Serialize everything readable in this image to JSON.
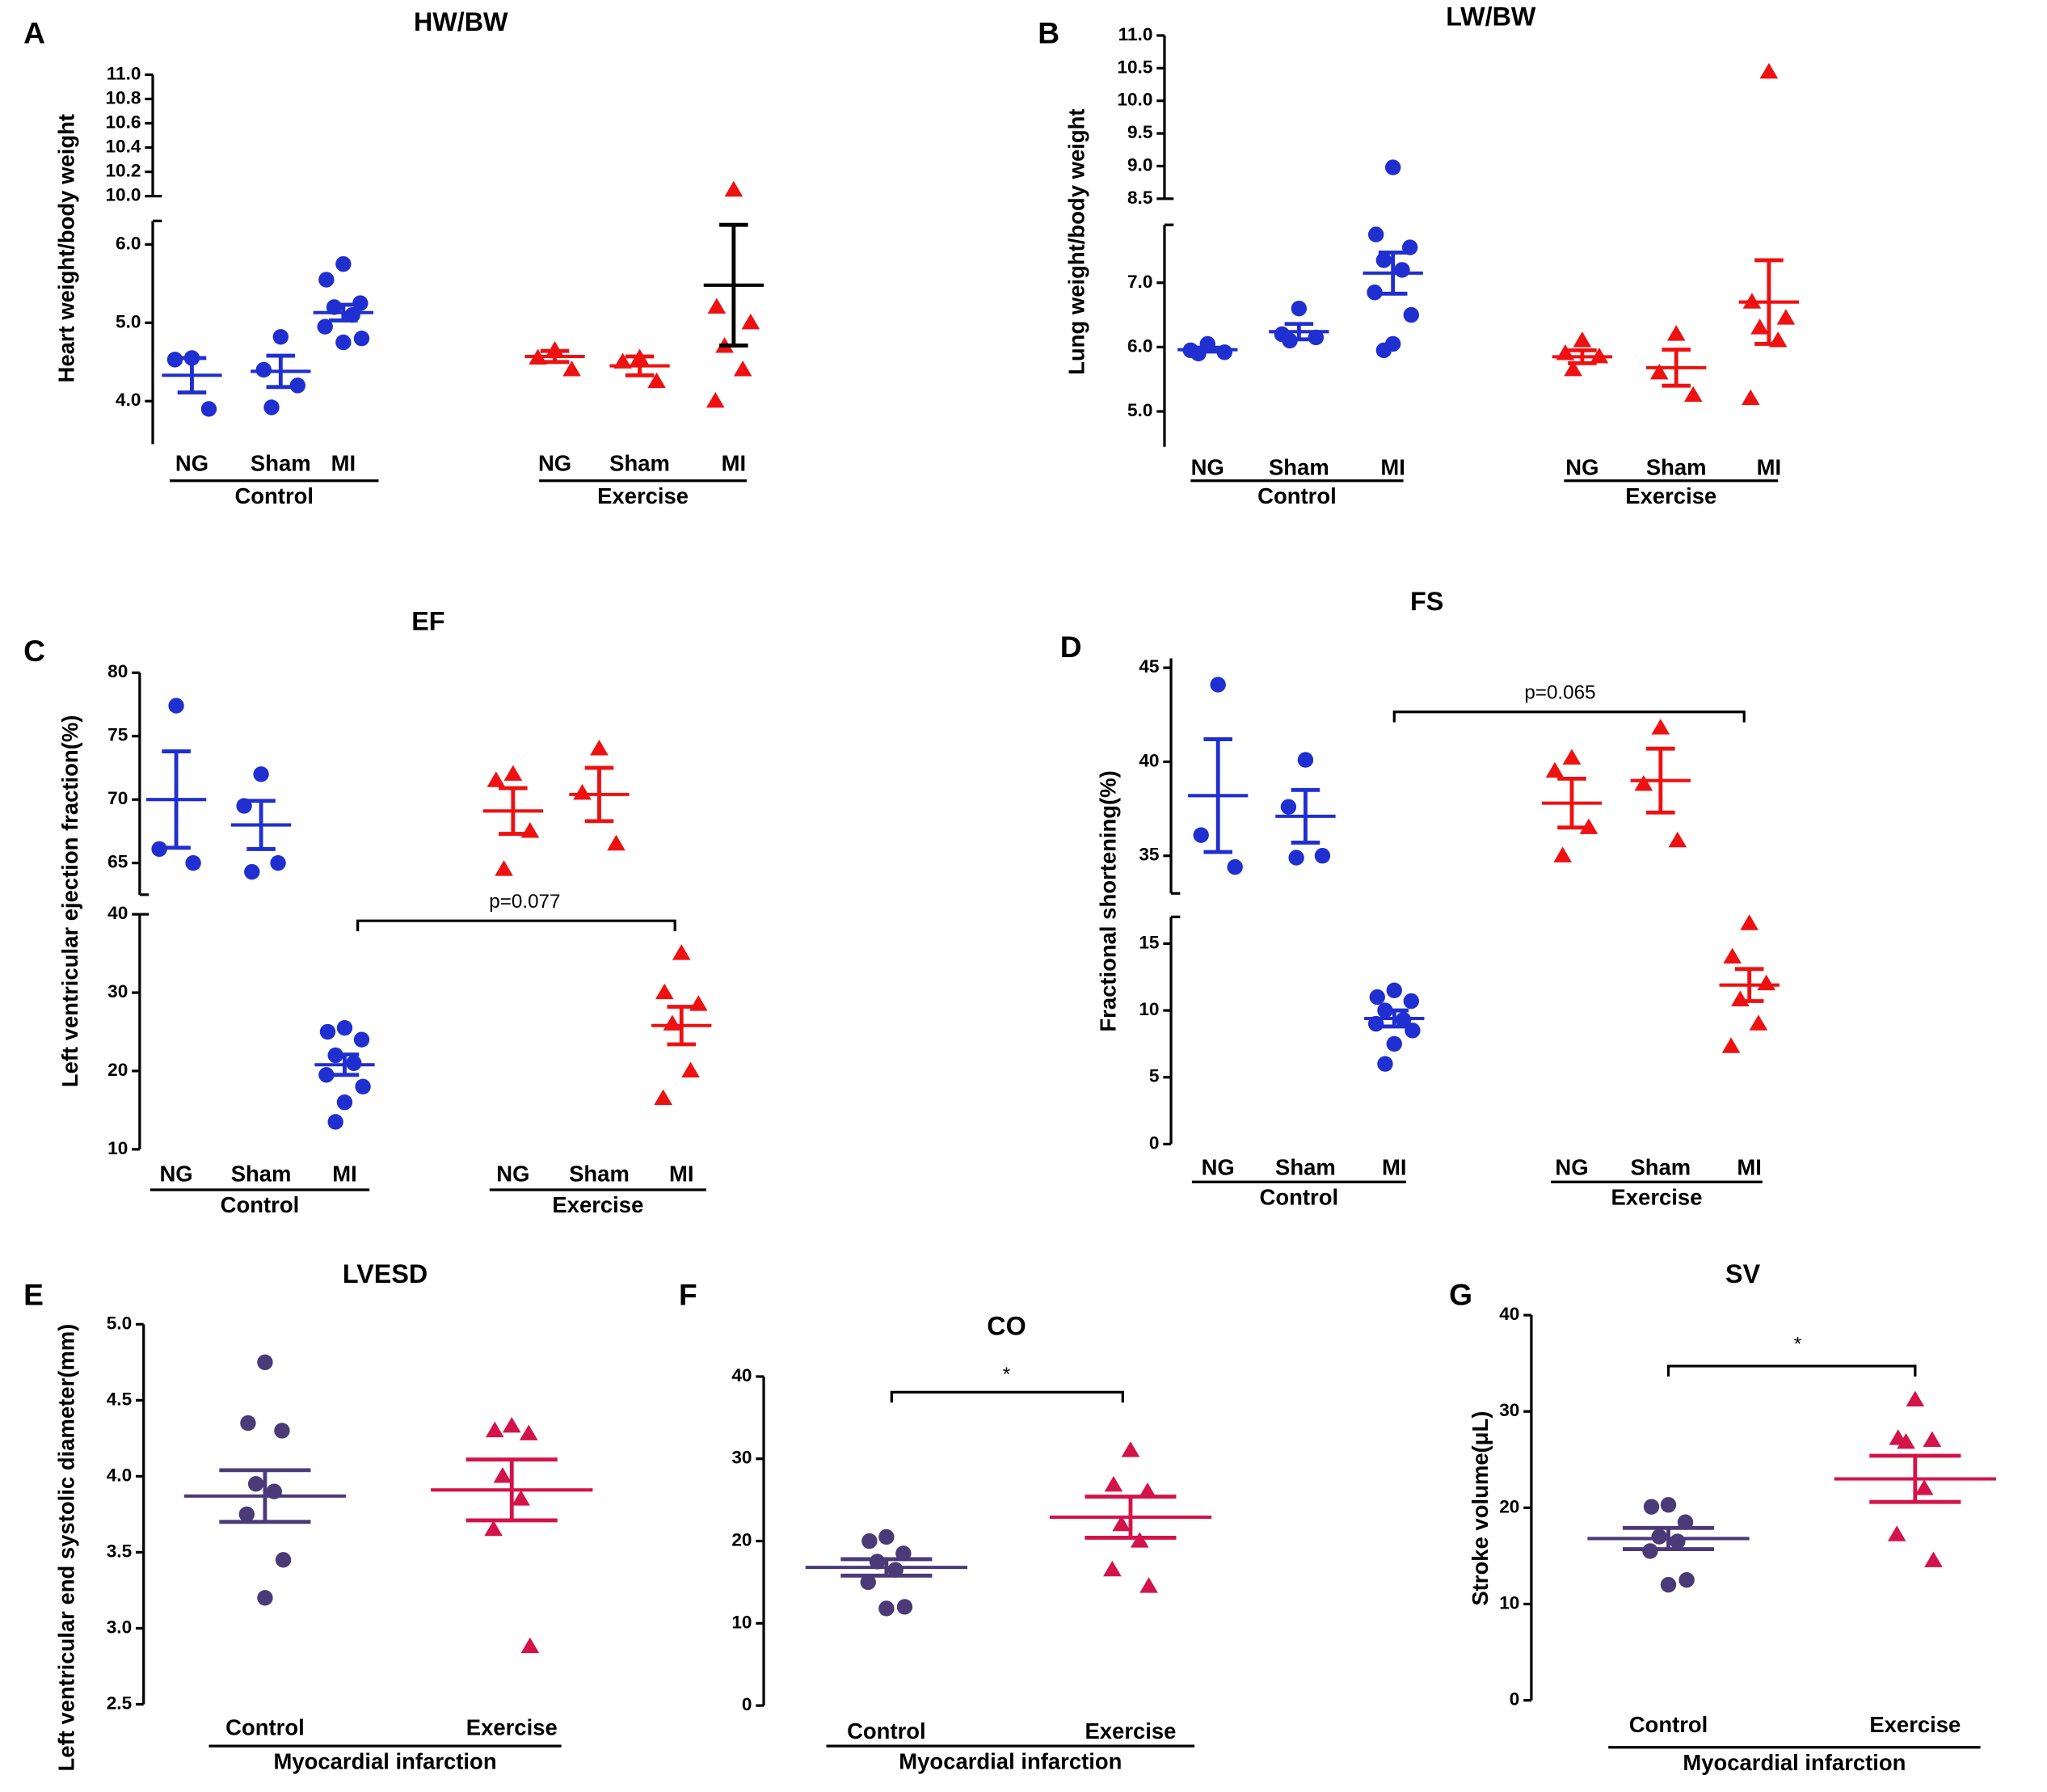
{
  "chart_data": [
    {
      "type": "dot",
      "panel": "A",
      "title": "HW/BW",
      "ylabel": "Heart weight/body weight",
      "axes": [
        {
          "ylim": [
            10.0,
            11.0
          ],
          "yticks": [
            {
              "value": 10.0,
              "label": "10.0"
            },
            {
              "value": 10.2,
              "label": "10.2"
            },
            {
              "value": 10.4,
              "label": "10.4"
            },
            {
              "value": 10.6,
              "label": "10.6"
            },
            {
              "value": 10.8,
              "label": "10.8"
            },
            {
              "value": 11.0,
              "label": "11.0"
            }
          ]
        },
        {
          "ylim": [
            3.45,
            6.3
          ],
          "yticks": [
            {
              "value": 4.0,
              "label": "4.0"
            },
            {
              "value": 5.0,
              "label": "5.0"
            },
            {
              "value": 6.0,
              "label": "6.0"
            }
          ]
        }
      ],
      "groups": [
        {
          "name": "NG",
          "color": "#1f2fd0",
          "marker": "circle",
          "values": [
            4.55,
            4.53,
            3.9
          ],
          "mean": 4.33,
          "sem": 0.22
        },
        {
          "name": "Sham",
          "color": "#1f2fd0",
          "marker": "circle",
          "values": [
            4.82,
            4.4,
            4.2,
            3.92
          ],
          "mean": 4.38,
          "sem": 0.2
        },
        {
          "name": "MI",
          "color": "#1f2fd0",
          "marker": "circle",
          "values": [
            5.75,
            5.55,
            5.25,
            5.2,
            5.1,
            4.95,
            4.8,
            4.75
          ],
          "mean": 5.13,
          "sem": 0.1
        },
        {
          "name": "NG",
          "color": "#ee1111",
          "marker": "triangle",
          "values": [
            4.65,
            4.55,
            4.4
          ],
          "mean": 4.57,
          "sem": 0.07
        },
        {
          "name": "Sham",
          "color": "#ee1111",
          "marker": "triangle",
          "values": [
            4.55,
            4.5,
            4.25
          ],
          "mean": 4.45,
          "sem": 0.12
        },
        {
          "name": "MI",
          "color": "#ee1111",
          "error_color": "#000000",
          "marker": "triangle",
          "values": [
            10.05,
            5.2,
            5.0,
            4.7,
            4.4,
            4.0
          ],
          "mean": 5.48,
          "sem": 0.77
        }
      ],
      "supergroups": [
        "Control",
        "Exercise"
      ]
    },
    {
      "type": "dot",
      "panel": "B",
      "title": "LW/BW",
      "ylabel": "Lung weight/body weight",
      "axes": [
        {
          "ylim": [
            8.5,
            11.0
          ],
          "yticks": [
            8.5,
            {
              "value": 9.0,
              "label": "9.0"
            },
            9.5,
            {
              "value": 10.0,
              "label": "10.0"
            },
            10.5,
            {
              "value": 11.0,
              "label": "11.0"
            }
          ]
        },
        {
          "ylim": [
            4.45,
            7.9
          ],
          "yticks": [
            {
              "value": 5.0,
              "label": "5.0"
            },
            {
              "value": 6.0,
              "label": "6.0"
            },
            {
              "value": 7.0,
              "label": "7.0"
            }
          ]
        }
      ],
      "groups": [
        {
          "name": "NG",
          "color": "#1f2fd0",
          "marker": "circle",
          "values": [
            6.05,
            5.95,
            5.92,
            5.9
          ],
          "mean": 5.96,
          "sem": 0.03
        },
        {
          "name": "Sham",
          "color": "#1f2fd0",
          "marker": "circle",
          "values": [
            6.6,
            6.2,
            6.15,
            6.1
          ],
          "mean": 6.24,
          "sem": 0.12
        },
        {
          "name": "MI",
          "color": "#1f2fd0",
          "marker": "circle",
          "values": [
            8.98,
            7.75,
            7.55,
            7.35,
            7.2,
            6.85,
            6.5,
            6.05,
            5.95
          ],
          "mean": 7.15,
          "sem": 0.32
        },
        {
          "name": "NG",
          "color": "#ee1111",
          "marker": "triangle",
          "values": [
            6.1,
            5.9,
            5.85,
            5.65
          ],
          "mean": 5.85,
          "sem": 0.1
        },
        {
          "name": "Sham",
          "color": "#ee1111",
          "marker": "triangle",
          "values": [
            6.2,
            5.6,
            5.25
          ],
          "mean": 5.68,
          "sem": 0.28
        },
        {
          "name": "MI",
          "color": "#ee1111",
          "marker": "triangle",
          "values": [
            10.44,
            6.7,
            6.45,
            6.3,
            6.1,
            5.2
          ],
          "mean": 6.7,
          "sem": 0.65
        }
      ],
      "supergroups": [
        "Control",
        "Exercise"
      ]
    },
    {
      "type": "dot",
      "panel": "C",
      "title": "EF",
      "ylabel": "Left ventricular ejection fraction(%)",
      "annotation": "p=0.077",
      "axes": [
        {
          "ylim": [
            62.5,
            80
          ],
          "yticks": [
            65,
            70,
            75,
            80
          ]
        },
        {
          "ylim": [
            10,
            40
          ],
          "yticks": [
            10,
            20,
            30,
            40
          ]
        }
      ],
      "groups": [
        {
          "name": "NG",
          "color": "#1f2fd0",
          "marker": "circle",
          "values": [
            77.4,
            66.1,
            65
          ],
          "mean": 70,
          "sem": 3.8
        },
        {
          "name": "Sham",
          "color": "#1f2fd0",
          "marker": "circle",
          "values": [
            72,
            69.5,
            65,
            64.3
          ],
          "mean": 68,
          "sem": 1.9
        },
        {
          "name": "MI",
          "color": "#1f2fd0",
          "marker": "circle",
          "values": [
            25.5,
            25,
            24,
            22,
            21,
            19.5,
            18,
            16,
            13.5
          ],
          "mean": 20.8,
          "sem": 1.3
        },
        {
          "name": "NG",
          "color": "#ee1111",
          "marker": "triangle",
          "values": [
            72,
            71.5,
            67.5,
            64.5
          ],
          "mean": 69.1,
          "sem": 1.8
        },
        {
          "name": "Sham",
          "color": "#ee1111",
          "marker": "triangle",
          "values": [
            74,
            70.5,
            66.5
          ],
          "mean": 70.4,
          "sem": 2.1
        },
        {
          "name": "MI",
          "color": "#ee1111",
          "marker": "triangle",
          "values": [
            35,
            30,
            28.5,
            26,
            20,
            16.5
          ],
          "mean": 25.8,
          "sem": 2.4
        }
      ],
      "supergroups": [
        "Control",
        "Exercise"
      ]
    },
    {
      "type": "dot",
      "panel": "D",
      "title": "FS",
      "ylabel": "Fractional shortening(%)",
      "annotation": "p=0.065",
      "axes": [
        {
          "ylim": [
            33,
            45.5
          ],
          "yticks": [
            35,
            40,
            45
          ]
        },
        {
          "ylim": [
            0,
            17
          ],
          "yticks": [
            0,
            5,
            10,
            15
          ]
        }
      ],
      "groups": [
        {
          "name": "NG",
          "color": "#1f2fd0",
          "marker": "circle",
          "values": [
            44.1,
            36.1,
            34.4
          ],
          "mean": 38.2,
          "sem": 3
        },
        {
          "name": "Sham",
          "color": "#1f2fd0",
          "marker": "circle",
          "values": [
            40.1,
            37.6,
            35,
            34.9
          ],
          "mean": 37.1,
          "sem": 1.4
        },
        {
          "name": "MI",
          "color": "#1f2fd0",
          "marker": "circle",
          "values": [
            11.5,
            11,
            10.7,
            10,
            9.3,
            9,
            8.5,
            7.5,
            6
          ],
          "mean": 9.4,
          "sem": 0.6
        },
        {
          "name": "NG",
          "color": "#ee1111",
          "marker": "triangle",
          "values": [
            40.2,
            39.5,
            36.5,
            35
          ],
          "mean": 37.8,
          "sem": 1.3
        },
        {
          "name": "Sham",
          "color": "#ee1111",
          "marker": "triangle",
          "values": [
            41.8,
            38.8,
            35.8
          ],
          "mean": 39,
          "sem": 1.7
        },
        {
          "name": "MI",
          "color": "#ee1111",
          "marker": "triangle",
          "values": [
            16.5,
            14,
            12,
            10.8,
            9,
            7.3
          ],
          "mean": 11.9,
          "sem": 1.2
        }
      ],
      "supergroups": [
        "Control",
        "Exercise"
      ]
    },
    {
      "type": "dot",
      "panel": "E",
      "title": "LVESD",
      "ylabel": "Left ventricular end systolic diameter(mm)",
      "axes": [
        {
          "ylim": [
            2.5,
            5.0
          ],
          "yticks": [
            2.5,
            {
              "value": 3.0,
              "label": "3.0"
            },
            3.5,
            {
              "value": 4.0,
              "label": "4.0"
            },
            4.5,
            {
              "value": 5.0,
              "label": "5.0"
            }
          ]
        }
      ],
      "groups": [
        {
          "name": "Control",
          "color": "#4b3a78",
          "marker": "circle",
          "values": [
            4.75,
            4.35,
            4.3,
            3.95,
            3.9,
            3.75,
            3.45,
            3.2
          ],
          "mean": 3.87,
          "sem": 0.17
        },
        {
          "name": "Exercise",
          "color": "#d4134a",
          "marker": "triangle",
          "values": [
            4.33,
            4.3,
            4.28,
            4.0,
            3.85,
            3.65,
            2.88
          ],
          "mean": 3.91,
          "sem": 0.2
        }
      ],
      "supergroups": [
        "Myocardial infarction"
      ]
    },
    {
      "type": "dot",
      "panel": "F",
      "title": "CO",
      "annotation": "*",
      "axes": [
        {
          "ylim": [
            0,
            40
          ],
          "yticks": [
            0,
            10,
            20,
            30,
            40
          ]
        }
      ],
      "groups": [
        {
          "name": "Control",
          "color": "#4b3a78",
          "marker": "circle",
          "values": [
            20.5,
            20,
            18.5,
            17.5,
            16.5,
            15,
            12,
            11.8
          ],
          "mean": 16.8,
          "sem": 1.0
        },
        {
          "name": "Exercise",
          "color": "#d4134a",
          "marker": "triangle",
          "values": [
            31,
            26.8,
            26,
            22,
            20,
            16.5,
            14.5
          ],
          "mean": 22.9,
          "sem": 2.5
        }
      ],
      "supergroups": [
        "Myocardial infarction"
      ]
    },
    {
      "type": "dot",
      "panel": "G",
      "title": "SV",
      "ylabel": "Stroke volume(μL)",
      "annotation": "*",
      "axes": [
        {
          "ylim": [
            0,
            40
          ],
          "yticks": [
            0,
            10,
            20,
            30,
            40
          ]
        }
      ],
      "groups": [
        {
          "name": "Control",
          "color": "#4b3a78",
          "marker": "circle",
          "values": [
            20.3,
            20.1,
            18.5,
            17,
            16.5,
            15.5,
            12.5,
            12
          ],
          "mean": 16.8,
          "sem": 1.1
        },
        {
          "name": "Exercise",
          "color": "#d4134a",
          "marker": "triangle",
          "values": [
            31.2,
            27.2,
            27,
            26.8,
            22,
            17.2,
            14.5
          ],
          "mean": 23,
          "sem": 2.4
        }
      ],
      "supergroups": [
        "Myocardial infarction"
      ]
    }
  ]
}
